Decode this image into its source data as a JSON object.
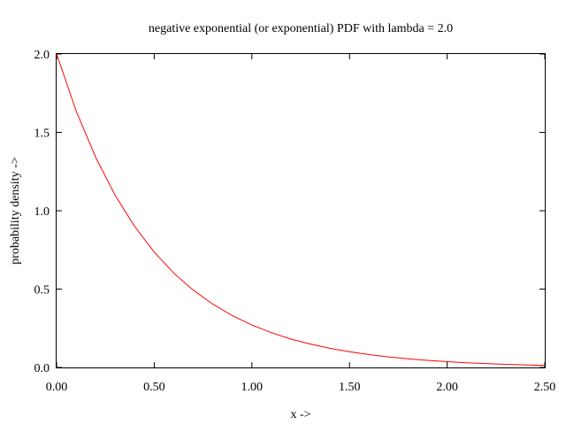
{
  "chart_data": {
    "type": "line",
    "title": "negative exponential (or exponential) PDF with lambda = 2.0",
    "xlabel": "x ->",
    "ylabel": "probability density ->",
    "xlim": [
      0,
      2.5
    ],
    "ylim": [
      0,
      2.0
    ],
    "x_ticks": [
      "0.00",
      "0.50",
      "1.00",
      "1.50",
      "2.00",
      "2.50"
    ],
    "y_ticks": [
      "0.0",
      "0.5",
      "1.0",
      "1.5",
      "2.0"
    ],
    "grid": false,
    "legend": "none",
    "colors": {
      "line": "#ff0000",
      "axes": "#000000"
    },
    "series": [
      {
        "x": [
          0,
          0.1,
          0.2,
          0.3,
          0.4,
          0.5,
          0.6,
          0.7,
          0.8,
          0.9,
          1.0,
          1.1,
          1.2,
          1.3,
          1.4,
          1.5,
          1.6,
          1.7,
          1.8,
          1.9,
          2.0,
          2.1,
          2.2,
          2.3,
          2.4,
          2.5
        ],
        "y": [
          2.0,
          1.637,
          1.341,
          1.098,
          0.899,
          0.736,
          0.602,
          0.493,
          0.404,
          0.331,
          0.271,
          0.222,
          0.181,
          0.149,
          0.122,
          0.1,
          0.082,
          0.067,
          0.055,
          0.045,
          0.037,
          0.03,
          0.025,
          0.02,
          0.016,
          0.013
        ]
      }
    ]
  }
}
